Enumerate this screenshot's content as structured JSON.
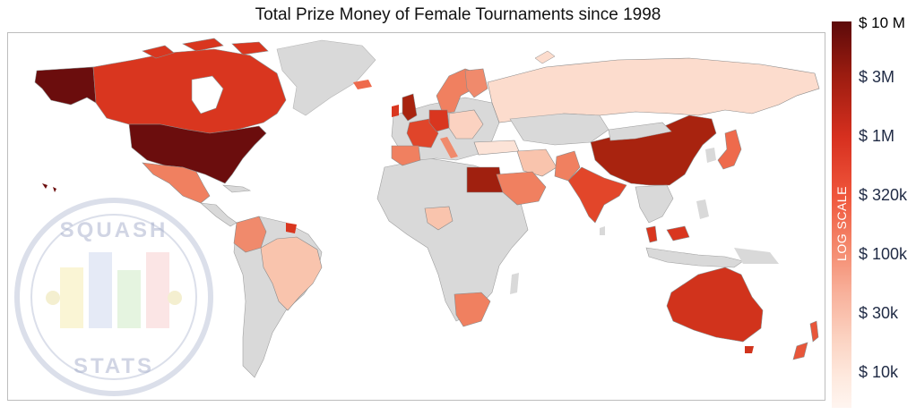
{
  "title": "Total Prize Money of Female Tournaments since 1998",
  "legend": {
    "axis_label": "LOG SCALE",
    "ticks": [
      "$ 10 M",
      "$ 3M",
      "$ 1M",
      "$ 320k",
      "$ 100k",
      "$ 30k",
      "$ 10k"
    ],
    "scale": "log",
    "color_max": "#5c0a0a",
    "color_min": "#fff5f0"
  },
  "watermark": {
    "top_text": "SQUASH",
    "bottom_text": "STATS"
  },
  "colors": {
    "no_data": "#d9d9d9",
    "border": "#8a8a8a"
  },
  "regions": [
    {
      "name": "USA",
      "level": "max",
      "fill": "#6b0d0d"
    },
    {
      "name": "Alaska",
      "level": "max",
      "fill": "#6b0d0d"
    },
    {
      "name": "Canada",
      "level": "high",
      "fill": "#d9361f"
    },
    {
      "name": "Mexico",
      "level": "mid",
      "fill": "#f08060"
    },
    {
      "name": "Colombia",
      "level": "mid",
      "fill": "#f08a6c"
    },
    {
      "name": "Brazil",
      "level": "low",
      "fill": "#f9c4ad"
    },
    {
      "name": "Egypt",
      "level": "very-high",
      "fill": "#a0200f"
    },
    {
      "name": "China",
      "level": "very-high",
      "fill": "#a8230f"
    },
    {
      "name": "India",
      "level": "high",
      "fill": "#e2462a"
    },
    {
      "name": "Australia",
      "level": "high",
      "fill": "#d1331c"
    },
    {
      "name": "South Africa",
      "level": "mid",
      "fill": "#f08060"
    },
    {
      "name": "Russia",
      "level": "low",
      "fill": "#fcdccd"
    },
    {
      "name": "United Kingdom",
      "level": "very-high",
      "fill": "#a8230f"
    },
    {
      "name": "France",
      "level": "high",
      "fill": "#e0452a"
    },
    {
      "name": "Japan",
      "level": "mid",
      "fill": "#ee6a4c"
    },
    {
      "name": "Malaysia",
      "level": "high",
      "fill": "#d9361f"
    },
    {
      "name": "Saudi Arabia",
      "level": "mid",
      "fill": "#f08060"
    },
    {
      "name": "New Zealand",
      "level": "mid",
      "fill": "#e8563a"
    }
  ]
}
